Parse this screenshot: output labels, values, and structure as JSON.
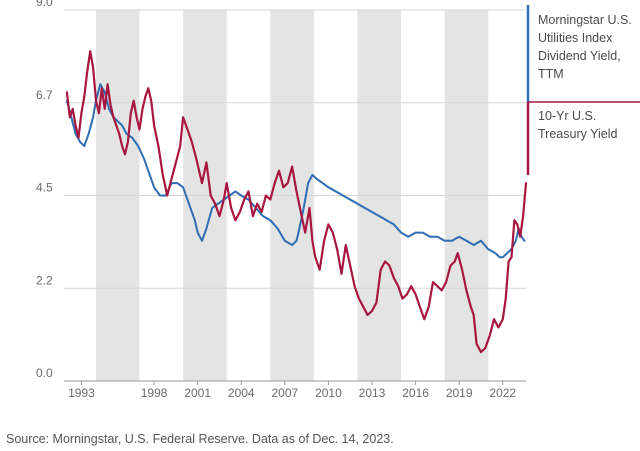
{
  "chart_data": {
    "type": "line",
    "title": "",
    "xlabel": "",
    "ylabel": "",
    "xlim": [
      1991.8,
      2023.6
    ],
    "ylim": [
      0,
      9.0
    ],
    "y_ticks": [
      {
        "value": 0,
        "label": "0.0"
      },
      {
        "value": 2.25,
        "label": "2.2"
      },
      {
        "value": 4.5,
        "label": "4.5"
      },
      {
        "value": 6.75,
        "label": "6.7"
      },
      {
        "value": 9.0,
        "label": "9.0"
      }
    ],
    "x_ticks": [
      {
        "value": 1993,
        "label": "1993"
      },
      {
        "value": 1998,
        "label": "1998"
      },
      {
        "value": 2001,
        "label": "2001"
      },
      {
        "value": 2004,
        "label": "2004"
      },
      {
        "value": 2007,
        "label": "2007"
      },
      {
        "value": 2010,
        "label": "2010"
      },
      {
        "value": 2013,
        "label": "2013"
      },
      {
        "value": 2016,
        "label": "2016"
      },
      {
        "value": 2019,
        "label": "2019"
      },
      {
        "value": 2022,
        "label": "2022"
      }
    ],
    "shaded_bands": [
      [
        1994,
        1997
      ],
      [
        2000,
        2003
      ],
      [
        2006,
        2009
      ],
      [
        2012,
        2015
      ],
      [
        2018,
        2021
      ]
    ],
    "legend_position": "right",
    "series": [
      {
        "name": "Morningstar U.S. Utilities Index Dividend Yield, TTM",
        "color": "#2e6cb5",
        "x": [
          1992.0,
          1992.3,
          1992.6,
          1992.9,
          1993.2,
          1993.5,
          1993.8,
          1994.0,
          1994.3,
          1994.6,
          1994.9,
          1995.2,
          1995.5,
          1995.8,
          1996.1,
          1996.5,
          1996.9,
          1997.3,
          1997.7,
          1998.0,
          1998.4,
          1998.8,
          1999.2,
          1999.6,
          2000.0,
          2000.4,
          2000.8,
          2001.0,
          2001.3,
          2001.6,
          2002.0,
          2002.4,
          2002.8,
          2003.2,
          2003.6,
          2004.0,
          2004.5,
          2005.0,
          2005.5,
          2006.0,
          2006.5,
          2007.0,
          2007.5,
          2007.8,
          2008.0,
          2008.3,
          2008.6,
          2008.9,
          2009.2,
          2009.6,
          2010.0,
          2010.5,
          2011.0,
          2011.5,
          2012.0,
          2012.5,
          2013.0,
          2013.5,
          2014.0,
          2014.5,
          2015.0,
          2015.5,
          2016.0,
          2016.5,
          2017.0,
          2017.5,
          2018.0,
          2018.5,
          2019.0,
          2019.5,
          2020.0,
          2020.5,
          2021.0,
          2021.5,
          2021.8,
          2022.0,
          2022.3,
          2022.6,
          2022.9,
          2023.1,
          2023.3,
          2023.5
        ],
        "values": [
          6.8,
          6.4,
          6.0,
          5.8,
          5.7,
          6.0,
          6.4,
          6.8,
          7.2,
          7.0,
          6.6,
          6.4,
          6.3,
          6.2,
          6.0,
          5.9,
          5.7,
          5.4,
          5.0,
          4.7,
          4.5,
          4.5,
          4.8,
          4.8,
          4.7,
          4.3,
          3.9,
          3.6,
          3.4,
          3.7,
          4.2,
          4.3,
          4.4,
          4.5,
          4.6,
          4.5,
          4.4,
          4.2,
          4.0,
          3.9,
          3.7,
          3.4,
          3.3,
          3.4,
          3.7,
          4.2,
          4.8,
          5.0,
          4.9,
          4.8,
          4.7,
          4.6,
          4.5,
          4.4,
          4.3,
          4.2,
          4.1,
          4.0,
          3.9,
          3.8,
          3.6,
          3.5,
          3.6,
          3.6,
          3.5,
          3.5,
          3.4,
          3.4,
          3.5,
          3.4,
          3.3,
          3.4,
          3.2,
          3.1,
          3.0,
          3.0,
          3.1,
          3.2,
          3.4,
          3.7,
          3.5,
          3.4
        ]
      },
      {
        "name": "10-Yr U.S. Treasury Yield",
        "color": "#a8163e",
        "x": [
          1992.0,
          1992.2,
          1992.4,
          1992.6,
          1992.8,
          1993.0,
          1993.2,
          1993.4,
          1993.6,
          1993.8,
          1994.0,
          1994.2,
          1994.4,
          1994.6,
          1994.8,
          1995.0,
          1995.2,
          1995.4,
          1995.6,
          1995.8,
          1996.0,
          1996.2,
          1996.4,
          1996.6,
          1996.8,
          1997.0,
          1997.2,
          1997.4,
          1997.6,
          1997.8,
          1998.0,
          1998.3,
          1998.6,
          1998.9,
          1999.2,
          1999.5,
          1999.8,
          2000.0,
          2000.3,
          2000.6,
          2000.9,
          2001.1,
          2001.3,
          2001.6,
          2001.9,
          2002.2,
          2002.5,
          2002.8,
          2003.0,
          2003.3,
          2003.6,
          2003.9,
          2004.2,
          2004.5,
          2004.8,
          2005.1,
          2005.4,
          2005.7,
          2006.0,
          2006.3,
          2006.6,
          2006.9,
          2007.2,
          2007.5,
          2007.8,
          2008.1,
          2008.4,
          2008.7,
          2008.9,
          2009.1,
          2009.4,
          2009.7,
          2010.0,
          2010.3,
          2010.6,
          2010.9,
          2011.2,
          2011.5,
          2011.8,
          2012.1,
          2012.4,
          2012.7,
          2013.0,
          2013.3,
          2013.6,
          2013.9,
          2014.2,
          2014.5,
          2014.8,
          2015.1,
          2015.4,
          2015.7,
          2016.0,
          2016.3,
          2016.6,
          2016.9,
          2017.2,
          2017.5,
          2017.8,
          2018.1,
          2018.4,
          2018.7,
          2018.9,
          2019.2,
          2019.5,
          2019.8,
          2020.0,
          2020.2,
          2020.5,
          2020.8,
          2021.1,
          2021.4,
          2021.7,
          2022.0,
          2022.2,
          2022.4,
          2022.6,
          2022.8,
          2023.0,
          2023.2,
          2023.4,
          2023.6
        ],
        "values": [
          7.0,
          6.4,
          6.6,
          6.2,
          5.9,
          6.5,
          6.9,
          7.5,
          8.0,
          7.6,
          6.8,
          6.5,
          7.1,
          6.6,
          7.2,
          6.7,
          6.4,
          6.2,
          6.0,
          5.7,
          5.5,
          5.8,
          6.5,
          6.8,
          6.4,
          6.1,
          6.6,
          6.9,
          7.1,
          6.8,
          6.2,
          5.7,
          5.0,
          4.5,
          4.9,
          5.3,
          5.7,
          6.4,
          6.1,
          5.8,
          5.4,
          5.1,
          4.8,
          5.3,
          4.5,
          4.3,
          4.0,
          4.4,
          4.8,
          4.2,
          3.9,
          4.1,
          4.4,
          4.6,
          4.0,
          4.3,
          4.1,
          4.5,
          4.4,
          4.8,
          5.1,
          4.7,
          4.8,
          5.2,
          4.6,
          4.1,
          3.6,
          4.2,
          3.4,
          3.0,
          2.7,
          3.4,
          3.8,
          3.6,
          3.2,
          2.6,
          3.3,
          2.8,
          2.3,
          2.0,
          1.8,
          1.6,
          1.7,
          1.9,
          2.7,
          2.9,
          2.8,
          2.5,
          2.3,
          2.0,
          2.1,
          2.3,
          2.1,
          1.8,
          1.5,
          1.8,
          2.4,
          2.3,
          2.2,
          2.4,
          2.8,
          2.9,
          3.1,
          2.7,
          2.2,
          1.8,
          1.6,
          0.9,
          0.7,
          0.8,
          1.1,
          1.5,
          1.3,
          1.5,
          2.0,
          2.9,
          3.0,
          3.9,
          3.8,
          3.5,
          4.0,
          4.8
        ]
      }
    ]
  },
  "source_text": "Source: Morningstar, U.S. Federal Reserve. Data as of Dec. 14, 2023."
}
